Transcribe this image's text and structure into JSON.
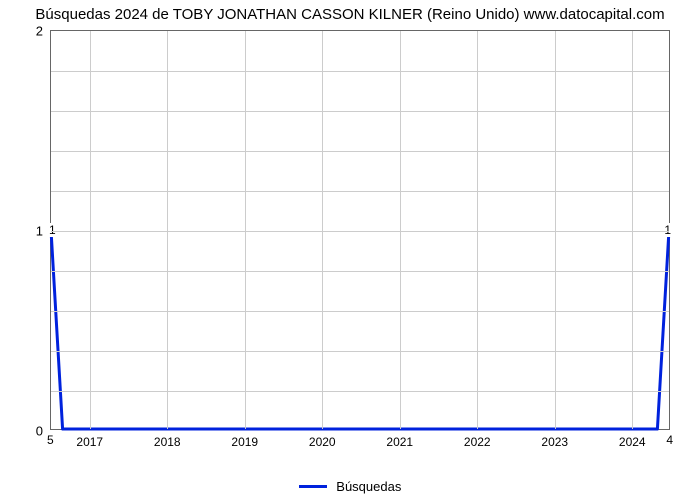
{
  "chart": {
    "type": "line",
    "title": "Búsquedas 2024 de TOBY JONATHAN CASSON KILNER (Reino Unido) www.datocapital.com",
    "title_fontsize": 15,
    "background_color": "#ffffff",
    "border_color": "#666666",
    "grid_color": "#cccccc",
    "x_year_start": 2016.5,
    "x_year_end": 2024.5,
    "x_ticks": [
      2017,
      2018,
      2019,
      2020,
      2021,
      2022,
      2023,
      2024
    ],
    "x_tick_labels": [
      "2017",
      "2018",
      "2019",
      "2020",
      "2021",
      "2022",
      "2023",
      "2024"
    ],
    "x_label_fontsize": 12,
    "y_min": 0,
    "y_max": 2,
    "y_major_ticks": [
      0,
      1,
      2
    ],
    "y_major_labels": [
      "0",
      "1",
      "2"
    ],
    "y_minor_count_between": 4,
    "y_label_fontsize": 13,
    "inner_bottom_left_label": "5",
    "inner_bottom_right_label": "4",
    "inner_mid_left_label": "1",
    "inner_mid_right_label": "1",
    "series": {
      "label": "Búsquedas",
      "color": "#0022dd",
      "width": 3,
      "points": [
        {
          "x": 2016.5,
          "y": 1.0
        },
        {
          "x": 2016.65,
          "y": 0.0
        },
        {
          "x": 2024.35,
          "y": 0.0
        },
        {
          "x": 2024.5,
          "y": 1.0
        }
      ]
    },
    "legend": {
      "position": "bottom-center",
      "fontsize": 13
    }
  }
}
